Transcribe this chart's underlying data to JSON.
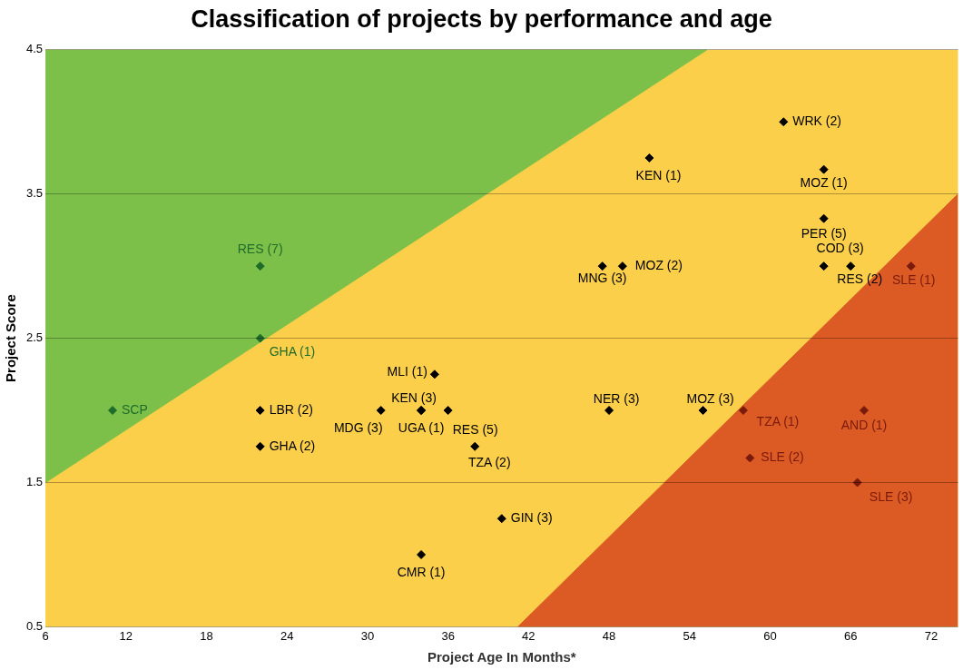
{
  "chart_data": {
    "type": "scatter",
    "title": "Classification of projects by performance and age",
    "xlabel": "Project Age In Months*",
    "ylabel": "Project Score",
    "xlim": [
      6,
      74
    ],
    "xticks": [
      6,
      12,
      18,
      24,
      30,
      36,
      42,
      48,
      54,
      60,
      66,
      72
    ],
    "ylim": [
      0.5,
      4.5
    ],
    "yticks": [
      0.5,
      1.5,
      2.5,
      3.5,
      4.5
    ],
    "grid": "y",
    "legend": false,
    "marker": "diamond",
    "series": [
      {
        "type": "area",
        "color": "#7cc04a",
        "marker": "none",
        "x": [
          6,
          55.3,
          6
        ],
        "values": [
          1.5,
          4.5,
          4.5
        ]
      },
      {
        "type": "area",
        "color": "#dc5a24",
        "marker": "none",
        "x": [
          41.2,
          74
        ],
        "values": [
          0.5,
          3.5
        ]
      },
      {
        "color": "#1e6b2a",
        "x": [
          11,
          22,
          22
        ],
        "values": [
          2,
          3,
          2.5
        ]
      },
      {
        "color": "#000000",
        "x": [
          22,
          22,
          31,
          35,
          34,
          34,
          36,
          38,
          40,
          34,
          48,
          55,
          66,
          64,
          64,
          64,
          61,
          51,
          47.5,
          49
        ],
        "values": [
          2,
          1.75,
          2,
          2.25,
          2,
          2,
          2,
          1.75,
          1.25,
          1,
          2,
          2,
          3,
          3,
          3.33,
          3.67,
          4,
          3.75,
          3,
          3
        ]
      },
      {
        "color": "#7a1a0c",
        "x": [
          58,
          58.5,
          66.5,
          67,
          70.5
        ],
        "values": [
          2,
          1.67,
          1.5,
          2,
          3
        ]
      }
    ],
    "annotations": [
      {
        "text": "SCP",
        "x": 11,
        "y": 2
      },
      {
        "text": "RES (7)",
        "x": 22,
        "y": 3
      },
      {
        "text": "GHA (1)",
        "x": 22,
        "y": 2.5
      },
      {
        "text": "LBR (2)",
        "x": 22,
        "y": 2
      },
      {
        "text": "GHA (2)",
        "x": 22,
        "y": 1.75
      },
      {
        "text": "MDG (3)",
        "x": 31,
        "y": 2
      },
      {
        "text": "MLI (1)",
        "x": 35,
        "y": 2.25
      },
      {
        "text": "KEN (3)",
        "x": 34,
        "y": 2
      },
      {
        "text": "UGA (1)",
        "x": 34,
        "y": 2
      },
      {
        "text": "RES (5)",
        "x": 36,
        "y": 2
      },
      {
        "text": "TZA (2)",
        "x": 38,
        "y": 1.75
      },
      {
        "text": "GIN (3)",
        "x": 40,
        "y": 1.25
      },
      {
        "text": "CMR (1)",
        "x": 34,
        "y": 1
      },
      {
        "text": "NER (3)",
        "x": 48,
        "y": 2
      },
      {
        "text": "MOZ (3)",
        "x": 55,
        "y": 2
      },
      {
        "text": "TZA (1)",
        "x": 58,
        "y": 2
      },
      {
        "text": "SLE (2)",
        "x": 58.5,
        "y": 1.67
      },
      {
        "text": "SLE (3)",
        "x": 66.5,
        "y": 1.5
      },
      {
        "text": "AND (1)",
        "x": 67,
        "y": 2
      },
      {
        "text": "SLE (1)",
        "x": 70.5,
        "y": 3
      },
      {
        "text": "RES (2)",
        "x": 66,
        "y": 3
      },
      {
        "text": "COD (3)",
        "x": 64,
        "y": 3
      },
      {
        "text": "PER (5)",
        "x": 64,
        "y": 3.33
      },
      {
        "text": "MOZ (1)",
        "x": 64,
        "y": 3.67
      },
      {
        "text": "WRK (2)",
        "x": 61,
        "y": 4
      },
      {
        "text": "KEN (1)",
        "x": 51,
        "y": 3.75
      },
      {
        "text": "MNG (3)",
        "x": 47.5,
        "y": 3
      },
      {
        "text": "MOZ (2)",
        "x": 49,
        "y": 3
      }
    ]
  }
}
